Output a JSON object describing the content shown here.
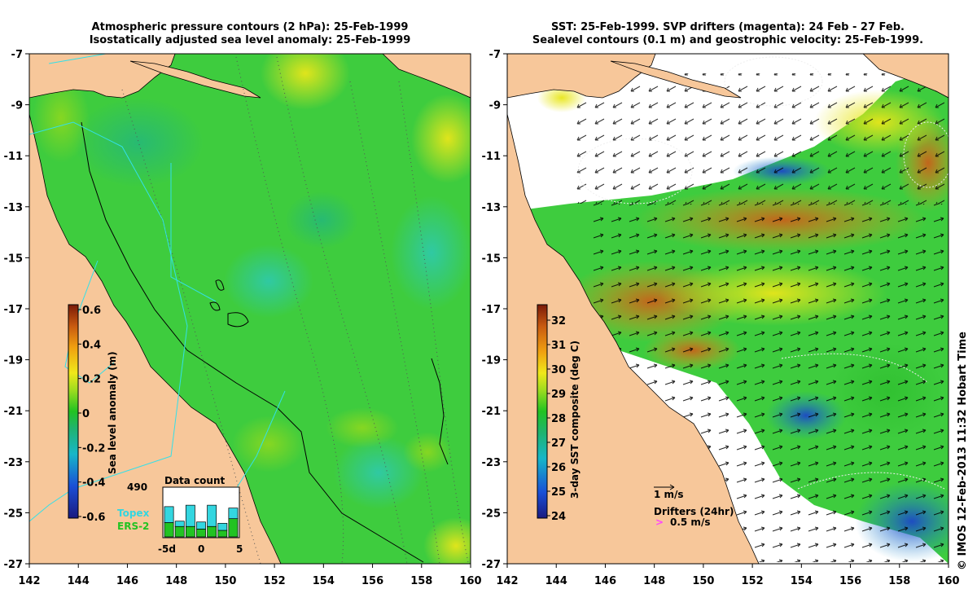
{
  "left_panel": {
    "title_line1": "Atmospheric pressure contours (2 hPa): 25-Feb-1999",
    "title_line2": "Isostatically adjusted sea level anomaly: 25-Feb-1999",
    "colorbar": {
      "label": "Sea level anomaly (m)",
      "ticks": [
        "0.6",
        "0.4",
        "0.2",
        "0",
        "-0.2",
        "-0.4",
        "-0.6"
      ],
      "range": [
        -0.6,
        0.6
      ]
    },
    "data_count": {
      "title": "Data count",
      "total": "490",
      "x_ticks": [
        "-5d",
        "0",
        "5"
      ],
      "legend_topex": "Topex",
      "legend_ers2": "ERS-2",
      "topex_color": "#33d6e0",
      "ers2_color": "#22c322",
      "bars_topex_fraction": [
        0.45,
        0.15,
        0.6,
        0.2,
        0.6,
        0.2,
        0.3
      ],
      "bars_ers2_fraction": [
        0.55,
        0.4,
        0.4,
        0.3,
        0.4,
        0.25,
        0.7
      ]
    }
  },
  "right_panel": {
    "title_line1": "SST: 25-Feb-1999. SVP drifters (magenta): 24 Feb - 27 Feb.",
    "title_line2": "Sealevel contours (0.1 m) and geostrophic velocity: 25-Feb-1999.",
    "colorbar": {
      "label": "3-day SST composite (deg C)",
      "ticks": [
        "32",
        "31",
        "30",
        "29",
        "28",
        "27",
        "26",
        "25",
        "24"
      ],
      "range": [
        24,
        33
      ]
    },
    "velocity_scale": "1 m/s",
    "drifters_label": "Drifters (24hr)",
    "drifters_scale": "0.5 m/s",
    "drifter_color": "#ff44ff"
  },
  "axes": {
    "lon_ticks": [
      "142",
      "144",
      "146",
      "148",
      "150",
      "152",
      "154",
      "156",
      "158",
      "160"
    ],
    "lat_ticks": [
      "-7",
      "-9",
      "-11",
      "-13",
      "-15",
      "-17",
      "-19",
      "-21",
      "-23",
      "-25",
      "-27"
    ]
  },
  "colors": {
    "land": "#f7c79a",
    "ocean_sla": "#3ecc3e",
    "sst_no_data": "#ffffff"
  },
  "credit": "© IMOS 12-Feb-2013 11:32 Hobart Time"
}
